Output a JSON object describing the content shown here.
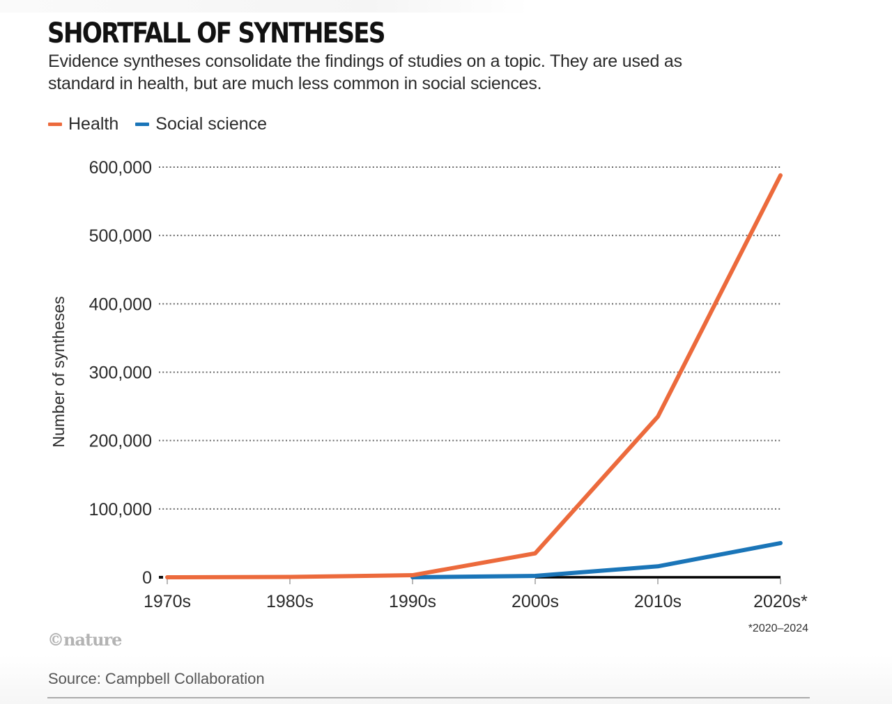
{
  "header": {
    "title": "SHORTFALL OF SYNTHESES",
    "subtitle": "Evidence syntheses consolidate the findings of studies on a topic. They are used as standard in health, but are much less common in social sciences."
  },
  "legend": [
    {
      "label": "Health",
      "color": "#ec6a3c"
    },
    {
      "label": "Social science",
      "color": "#1a75b8"
    }
  ],
  "chart_data": {
    "type": "line",
    "title": "SHORTFALL OF SYNTHESES",
    "subtitle": "Evidence syntheses consolidate the findings of studies on a topic. They are used as standard in health, but are much less common in social sciences.",
    "xlabel": "",
    "ylabel": "Number of syntheses",
    "categories": [
      "1970s",
      "1980s",
      "1990s",
      "2000s",
      "2010s",
      "2020s*"
    ],
    "x_tick_labels": [
      "1970s",
      "1980s",
      "1990s",
      "2000s",
      "2010s",
      "2020s*"
    ],
    "ylim": [
      0,
      600000
    ],
    "y_ticks": [
      0,
      100000,
      200000,
      300000,
      400000,
      500000,
      600000
    ],
    "y_tick_labels": [
      "0",
      "100,000",
      "200,000",
      "300,000",
      "400,000",
      "500,000",
      "600,000"
    ],
    "grid": "horizontal-dotted",
    "legend_position": "top-left",
    "series": [
      {
        "name": "Health",
        "color": "#ec6a3c",
        "values": [
          0,
          500,
          3000,
          35000,
          235000,
          588000
        ]
      },
      {
        "name": "Social science",
        "color": "#1a75b8",
        "start_index": 2,
        "values": [
          null,
          null,
          0,
          2000,
          16000,
          50000
        ]
      }
    ],
    "annotations": [
      "*2020–2024"
    ]
  },
  "footer": {
    "footnote": "*2020–2024",
    "logo": "©nature",
    "source": "Source: Campbell Collaboration"
  }
}
